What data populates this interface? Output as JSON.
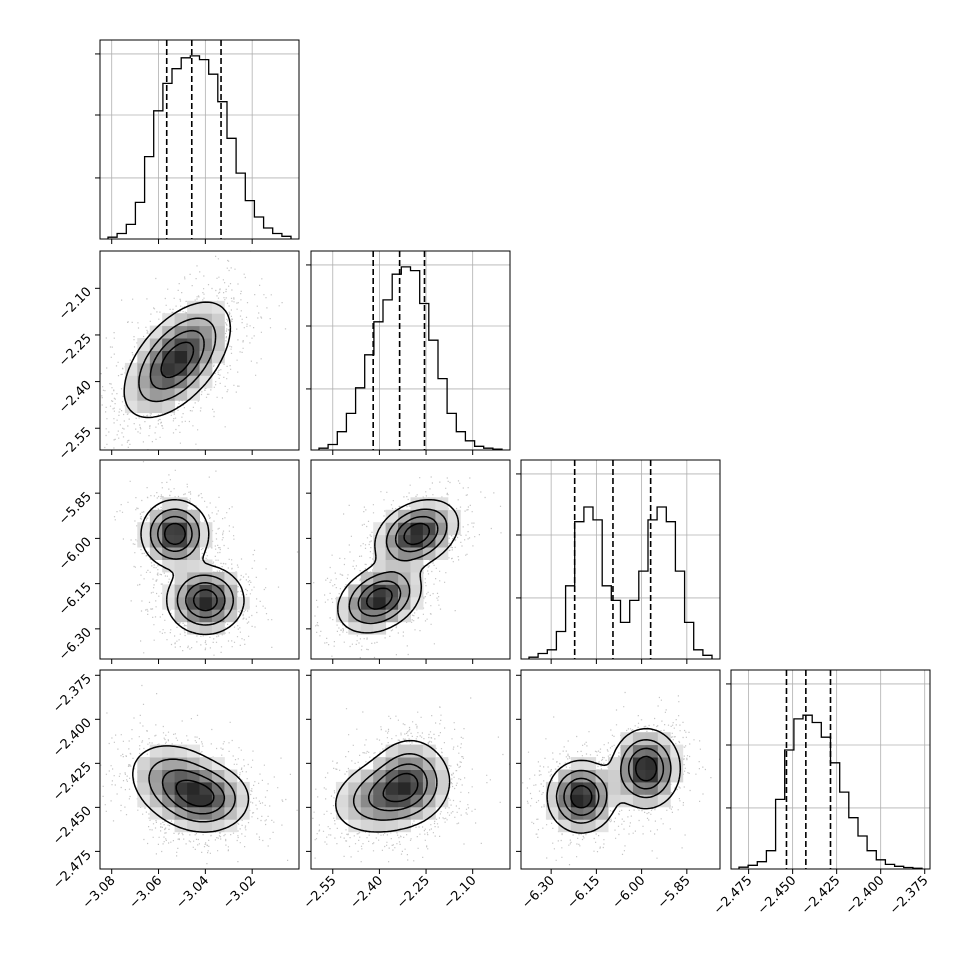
{
  "chart_data": {
    "type": "corner",
    "title": "",
    "parameters": [
      {
        "name": "",
        "range": [
          -3.085,
          -3.0
        ],
        "ticks": [
          -3.08,
          -3.06,
          -3.04,
          -3.02
        ],
        "tick_labels": [
          "−3.08",
          "−3.06",
          "−3.04",
          "−3.02"
        ],
        "quantiles": [
          -3.0565,
          -3.0458,
          -3.0333
        ],
        "histogram": [
          0.01,
          0.03,
          0.08,
          0.2,
          0.45,
          0.7,
          0.85,
          0.93,
          0.99,
          1.0,
          0.98,
          0.9,
          0.75,
          0.55,
          0.36,
          0.21,
          0.12,
          0.06,
          0.03,
          0.015
        ]
      },
      {
        "name": "",
        "range": [
          -2.62,
          -1.98
        ],
        "ticks": [
          -2.55,
          -2.4,
          -2.25,
          -2.1
        ],
        "tick_labels": [
          "−2.55",
          "−2.40",
          "−2.25",
          "−2.10"
        ],
        "quantiles": [
          -2.42,
          -2.335,
          -2.255
        ],
        "histogram": [
          0.01,
          0.03,
          0.1,
          0.2,
          0.34,
          0.52,
          0.7,
          0.82,
          0.96,
          1.0,
          0.98,
          0.8,
          0.6,
          0.39,
          0.2,
          0.1,
          0.05,
          0.02,
          0.01,
          0.005
        ]
      },
      {
        "name": "",
        "range": [
          -6.4,
          -5.74
        ],
        "ticks": [
          -6.3,
          -6.15,
          -6.0,
          -5.85
        ],
        "tick_labels": [
          "−6.30",
          "−6.15",
          "−6.00",
          "−5.85"
        ],
        "quantiles": [
          -6.222,
          -6.095,
          -5.97
        ],
        "histogram": [
          0.01,
          0.03,
          0.05,
          0.15,
          0.4,
          0.75,
          0.83,
          0.76,
          0.4,
          0.32,
          0.2,
          0.32,
          0.48,
          0.76,
          0.83,
          0.75,
          0.48,
          0.2,
          0.05,
          0.02
        ]
      },
      {
        "name": "",
        "range": [
          -2.485,
          -2.372
        ],
        "ticks": [
          -2.475,
          -2.45,
          -2.425,
          -2.4,
          -2.375
        ],
        "tick_labels": [
          "−2.475",
          "−2.450",
          "−2.425",
          "−2.400",
          "−2.375"
        ],
        "quantiles": [
          -2.4535,
          -2.4425,
          -2.4285
        ],
        "histogram": [
          0.01,
          0.02,
          0.04,
          0.1,
          0.38,
          0.65,
          0.82,
          0.84,
          0.8,
          0.72,
          0.58,
          0.42,
          0.28,
          0.18,
          0.1,
          0.05,
          0.025,
          0.015,
          0.008,
          0.004
        ]
      }
    ],
    "joint_modes": [
      {
        "pair": [
          0,
          1
        ],
        "modes": [
          {
            "mean": [
              -3.052,
              -2.33
            ],
            "sd": [
              0.011,
              0.09
            ],
            "rho": 0.55,
            "weight": 1.0
          }
        ]
      },
      {
        "pair": [
          0,
          2
        ],
        "modes": [
          {
            "mean": [
              -3.053,
              -5.985
            ],
            "sd": [
              0.007,
              0.055
            ],
            "rho": 0.0,
            "weight": 0.5
          },
          {
            "mean": [
              -3.04,
              -6.205
            ],
            "sd": [
              0.008,
              0.055
            ],
            "rho": 0.0,
            "weight": 0.5
          }
        ]
      },
      {
        "pair": [
          1,
          2
        ],
        "modes": [
          {
            "mean": [
              -2.28,
              -5.985
            ],
            "sd": [
              0.065,
              0.055
            ],
            "rho": 0.3,
            "weight": 0.5
          },
          {
            "mean": [
              -2.4,
              -6.2
            ],
            "sd": [
              0.065,
              0.055
            ],
            "rho": 0.3,
            "weight": 0.5
          }
        ]
      },
      {
        "pair": [
          0,
          3
        ],
        "modes": [
          {
            "mean": [
              -3.05,
              -2.438
            ],
            "sd": [
              0.011,
              0.012
            ],
            "rho": -0.3,
            "weight": 0.6
          },
          {
            "mean": [
              -3.038,
              -2.445
            ],
            "sd": [
              0.009,
              0.009
            ],
            "rho": 0.0,
            "weight": 0.4
          }
        ]
      },
      {
        "pair": [
          1,
          3
        ],
        "modes": [
          {
            "mean": [
              -2.37,
              -2.443
            ],
            "sd": [
              0.09,
              0.011
            ],
            "rho": 0.25,
            "weight": 0.6
          },
          {
            "mean": [
              -2.3,
              -2.433
            ],
            "sd": [
              0.06,
              0.012
            ],
            "rho": 0.0,
            "weight": 0.4
          }
        ]
      },
      {
        "pair": [
          2,
          3
        ],
        "modes": [
          {
            "mean": [
              -6.2,
              -2.444
            ],
            "sd": [
              0.055,
              0.01
            ],
            "rho": 0.0,
            "weight": 0.5
          },
          {
            "mean": [
              -5.985,
              -2.428
            ],
            "sd": [
              0.055,
              0.011
            ],
            "rho": 0.0,
            "weight": 0.5
          }
        ]
      }
    ],
    "contour_levels": [
      0.12,
      0.33,
      0.58,
      0.82
    ],
    "grid": true,
    "legend": "none",
    "colors": {
      "line": "#000000",
      "grid": "#b0b0b0",
      "density_dark": "#3c3c3c",
      "points": "#7f7f7f"
    }
  }
}
